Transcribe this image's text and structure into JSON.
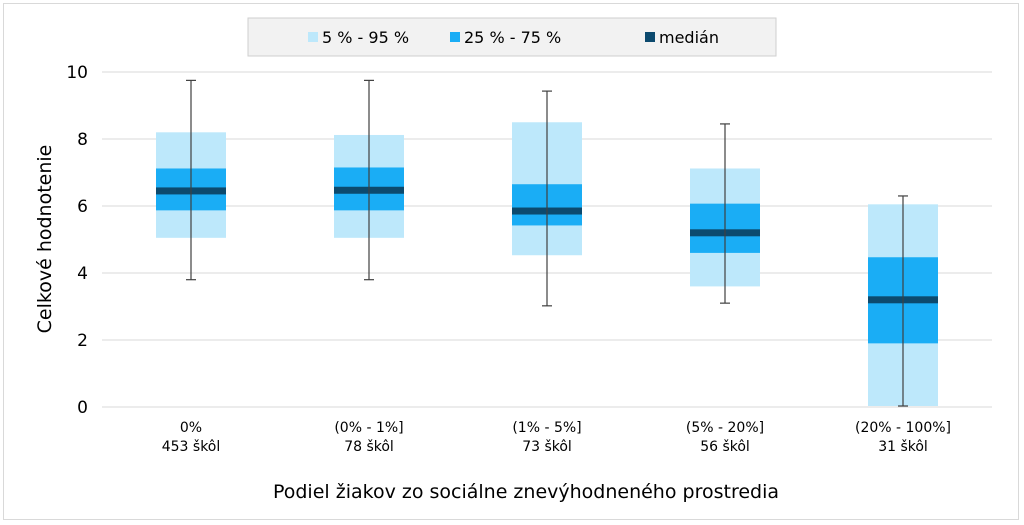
{
  "chart_data": {
    "type": "box",
    "title": "",
    "xlabel": "Podiel žiakov zo sociálne znevýhodneného prostredia",
    "ylabel": "Celkové hodnotenie",
    "ylim": [
      0,
      10
    ],
    "yticks": [
      0,
      2,
      4,
      6,
      8,
      10
    ],
    "grid": "horizontal",
    "legend_position": "top",
    "legend": [
      {
        "key": "p5_95",
        "label": "5 % - 95 %",
        "color": "#bde8fb"
      },
      {
        "key": "p25_75",
        "label": "25 % - 75 %",
        "color": "#1aadf5"
      },
      {
        "key": "median",
        "label": "medián",
        "color": "#0c4a6e"
      }
    ],
    "categories": [
      {
        "label": "0%",
        "count": "453 škôl",
        "min": 3.8,
        "p5": 5.05,
        "p25": 5.87,
        "median": 6.45,
        "p75": 7.12,
        "p95": 8.2,
        "max": 9.75
      },
      {
        "label": "(0% - 1%]",
        "count": "78 škôl",
        "min": 3.8,
        "p5": 5.05,
        "p25": 5.87,
        "median": 6.47,
        "p75": 7.15,
        "p95": 8.12,
        "max": 9.75
      },
      {
        "label": "(1% - 5%]",
        "count": "73 škôl",
        "min": 3.02,
        "p5": 4.53,
        "p25": 5.42,
        "median": 5.85,
        "p75": 6.65,
        "p95": 8.5,
        "max": 9.43
      },
      {
        "label": "(5% - 20%]",
        "count": "56 škôl",
        "min": 3.1,
        "p5": 3.6,
        "p25": 4.6,
        "median": 5.2,
        "p75": 6.07,
        "p95": 7.12,
        "max": 8.45
      },
      {
        "label": "(20% - 100%]",
        "count": "31 škôl",
        "min": 0.03,
        "p5": 0.03,
        "p25": 1.9,
        "median": 3.2,
        "p75": 4.47,
        "p95": 6.05,
        "max": 6.3
      }
    ]
  }
}
